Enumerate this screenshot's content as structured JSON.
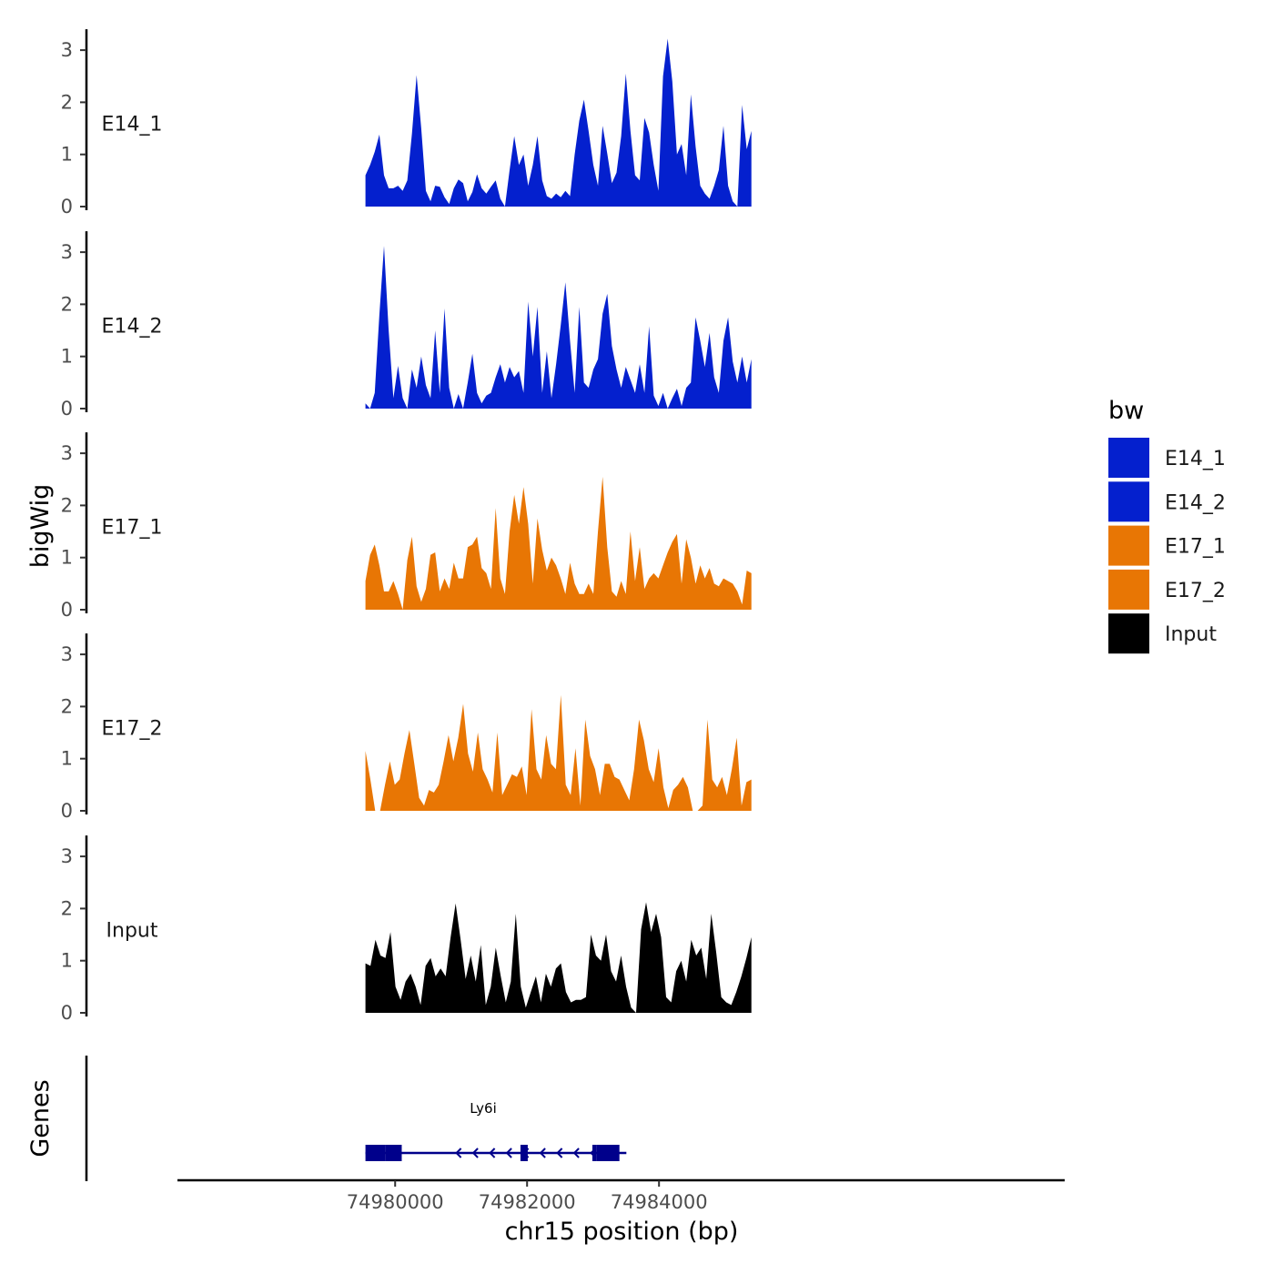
{
  "chart_data": {
    "type": "area",
    "title": "",
    "ylabel": "bigWig",
    "genes_label": "Genes",
    "xlabel": "chr15 position (bp)",
    "xlim": [
      74976700,
      74990150
    ],
    "x_ticks": [
      74980000,
      74982000,
      74984000
    ],
    "x_tick_labels": [
      "74980000",
      "74982000",
      "74984000"
    ],
    "ylim": [
      0,
      3.4
    ],
    "y_ticks": [
      0,
      1,
      2,
      3
    ],
    "y_tick_labels": [
      "0",
      "1",
      "2",
      "3"
    ],
    "data_x_range": [
      74979550,
      74985400
    ],
    "legend": {
      "title": "bw",
      "position": "right",
      "items": [
        {
          "name": "E14_1",
          "color": "#0420CE"
        },
        {
          "name": "E14_2",
          "color": "#0420CE"
        },
        {
          "name": "E17_1",
          "color": "#E87604"
        },
        {
          "name": "E17_2",
          "color": "#E87604"
        },
        {
          "name": "Input",
          "color": "#000000"
        }
      ]
    },
    "series": [
      {
        "name": "E14_1",
        "color": "#0420CE",
        "values": [
          0.6,
          0.8,
          1.05,
          1.38,
          0.6,
          0.35,
          0.35,
          0.4,
          0.3,
          0.5,
          1.4,
          2.52,
          1.5,
          0.3,
          0.1,
          0.4,
          0.38,
          0.18,
          0.05,
          0.35,
          0.52,
          0.45,
          0.1,
          0.28,
          0.62,
          0.35,
          0.25,
          0.38,
          0.5,
          0.15,
          0.0,
          0.7,
          1.35,
          0.8,
          1.0,
          0.4,
          0.8,
          1.35,
          0.5,
          0.2,
          0.15,
          0.25,
          0.18,
          0.3,
          0.2,
          1.0,
          1.65,
          2.05,
          1.45,
          0.8,
          0.4,
          1.55,
          1.02,
          0.45,
          0.65,
          1.35,
          2.55,
          1.45,
          0.6,
          0.5,
          1.7,
          1.42,
          0.8,
          0.3,
          2.5,
          3.22,
          2.4,
          1.0,
          1.2,
          0.6,
          2.15,
          1.15,
          0.4,
          0.25,
          0.15,
          0.4,
          0.7,
          1.55,
          0.4,
          0.1,
          0.0,
          1.95,
          1.1,
          1.45
        ]
      },
      {
        "name": "E14_2",
        "color": "#0420CE",
        "values": [
          0.1,
          0.0,
          0.3,
          1.8,
          3.12,
          1.5,
          0.2,
          0.82,
          0.2,
          0.0,
          0.75,
          0.4,
          1.0,
          0.45,
          0.2,
          1.5,
          0.3,
          1.92,
          0.4,
          0.0,
          0.28,
          0.0,
          0.5,
          1.05,
          0.3,
          0.1,
          0.25,
          0.3,
          0.6,
          0.85,
          0.5,
          0.8,
          0.6,
          0.72,
          0.3,
          2.05,
          1.0,
          1.95,
          0.3,
          1.1,
          0.2,
          0.85,
          1.6,
          2.42,
          1.3,
          0.3,
          1.95,
          0.5,
          0.4,
          0.75,
          0.95,
          1.82,
          2.2,
          1.2,
          0.75,
          0.4,
          0.8,
          0.55,
          0.3,
          0.85,
          0.3,
          1.58,
          0.25,
          0.05,
          0.3,
          0.0,
          0.2,
          0.38,
          0.05,
          0.4,
          0.5,
          1.75,
          1.3,
          0.8,
          1.45,
          0.6,
          0.3,
          1.3,
          1.75,
          0.9,
          0.5,
          1.0,
          0.5,
          0.95
        ]
      },
      {
        "name": "E17_1",
        "color": "#E87604",
        "values": [
          0.55,
          1.05,
          1.25,
          0.85,
          0.35,
          0.35,
          0.55,
          0.3,
          0.0,
          0.95,
          1.4,
          0.45,
          0.15,
          0.4,
          1.05,
          1.1,
          0.35,
          0.6,
          0.4,
          0.9,
          0.6,
          0.6,
          1.2,
          1.25,
          1.4,
          0.8,
          0.7,
          0.4,
          1.95,
          0.6,
          0.3,
          1.5,
          2.2,
          1.65,
          2.35,
          1.65,
          0.5,
          1.75,
          1.15,
          0.75,
          1.0,
          0.85,
          0.6,
          0.3,
          0.9,
          0.5,
          0.3,
          0.3,
          0.5,
          0.3,
          1.5,
          2.55,
          1.2,
          0.35,
          0.25,
          0.55,
          0.3,
          1.5,
          0.55,
          1.2,
          0.4,
          0.6,
          0.7,
          0.6,
          0.85,
          1.1,
          1.3,
          1.45,
          0.5,
          1.35,
          1.0,
          0.5,
          0.85,
          0.6,
          0.8,
          0.5,
          0.45,
          0.6,
          0.55,
          0.5,
          0.35,
          0.1,
          0.75,
          0.7
        ]
      },
      {
        "name": "E17_2",
        "color": "#E87604",
        "values": [
          1.15,
          0.6,
          0.0,
          0.0,
          0.5,
          0.95,
          0.5,
          0.6,
          1.1,
          1.55,
          0.9,
          0.25,
          0.1,
          0.4,
          0.35,
          0.5,
          0.95,
          1.45,
          0.95,
          1.4,
          2.05,
          1.1,
          0.75,
          1.5,
          0.8,
          0.6,
          0.35,
          1.5,
          0.3,
          0.5,
          0.7,
          0.65,
          0.85,
          0.3,
          1.95,
          0.8,
          0.6,
          1.45,
          0.9,
          0.8,
          2.22,
          0.5,
          0.3,
          1.2,
          0.1,
          1.75,
          1.05,
          0.8,
          0.3,
          0.9,
          0.9,
          0.65,
          0.6,
          0.4,
          0.2,
          0.8,
          1.75,
          1.35,
          0.8,
          0.55,
          1.2,
          0.45,
          0.05,
          0.4,
          0.5,
          0.65,
          0.45,
          0.0,
          0.0,
          0.1,
          1.75,
          0.6,
          0.45,
          0.65,
          0.3,
          0.8,
          1.4,
          0.1,
          0.55,
          0.6
        ]
      },
      {
        "name": "Input",
        "color": "#000000",
        "values": [
          0.95,
          0.9,
          1.4,
          1.1,
          1.05,
          1.55,
          0.5,
          0.25,
          0.6,
          0.75,
          0.5,
          0.15,
          0.9,
          1.05,
          0.7,
          0.85,
          0.7,
          1.45,
          2.1,
          1.4,
          0.65,
          1.1,
          0.6,
          1.3,
          0.15,
          0.5,
          1.25,
          0.7,
          0.2,
          0.6,
          1.9,
          0.5,
          0.1,
          0.4,
          0.7,
          0.2,
          0.75,
          0.5,
          0.85,
          0.95,
          0.4,
          0.2,
          0.25,
          0.25,
          0.3,
          1.5,
          1.1,
          1.0,
          1.5,
          0.8,
          0.6,
          1.1,
          0.5,
          0.1,
          0.0,
          1.6,
          2.12,
          1.55,
          1.9,
          1.45,
          0.3,
          0.2,
          0.8,
          1.0,
          0.6,
          1.4,
          1.1,
          1.25,
          0.65,
          1.9,
          1.15,
          0.3,
          0.2,
          0.15,
          0.4,
          0.7,
          1.05,
          1.45
        ]
      }
    ],
    "gene_track": {
      "gene_name": "Ly6i",
      "color": "#00008B",
      "strand": "-",
      "start": 74979550,
      "end": 74983450,
      "exons": [
        [
          74979550,
          74979850
        ],
        [
          74979850,
          74980100
        ],
        [
          74981900,
          74982010
        ],
        [
          74982990,
          74983050
        ],
        [
          74983050,
          74983400
        ]
      ]
    }
  }
}
